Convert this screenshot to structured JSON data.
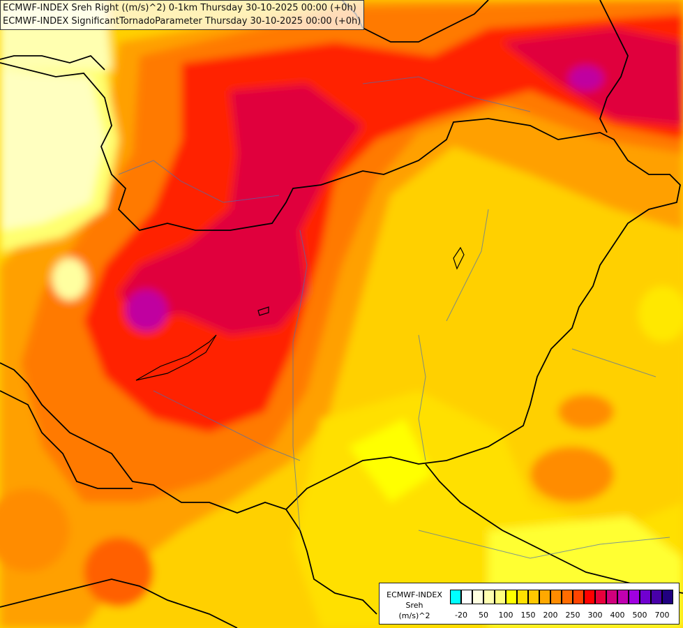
{
  "title": {
    "line1": "ECMWF-INDEX Sreh Right ((m/s)^2) 0-1km Thursday 30-10-2025 00:00 (+0h)",
    "line2": "ECMWF-INDEX SignificantTornadoParameter Thursday 30-10-2025 00:00 (+0h)"
  },
  "legend": {
    "model": "ECMWF-INDEX",
    "variable": "Sreh",
    "unit": "(m/s)^2",
    "colors": [
      "#00ffff",
      "#ffffff",
      "#ffffe0",
      "#ffffb0",
      "#ffff80",
      "#ffff00",
      "#ffe000",
      "#ffc800",
      "#ffa800",
      "#ff8c00",
      "#ff6c00",
      "#ff4400",
      "#ff0000",
      "#e8003c",
      "#d0007c",
      "#c000b0",
      "#a000e0",
      "#7000d0",
      "#4800a8",
      "#200080"
    ],
    "ticks": [
      "-20",
      "50",
      "100",
      "150",
      "200",
      "250",
      "300",
      "400",
      "500",
      "700"
    ]
  }
}
